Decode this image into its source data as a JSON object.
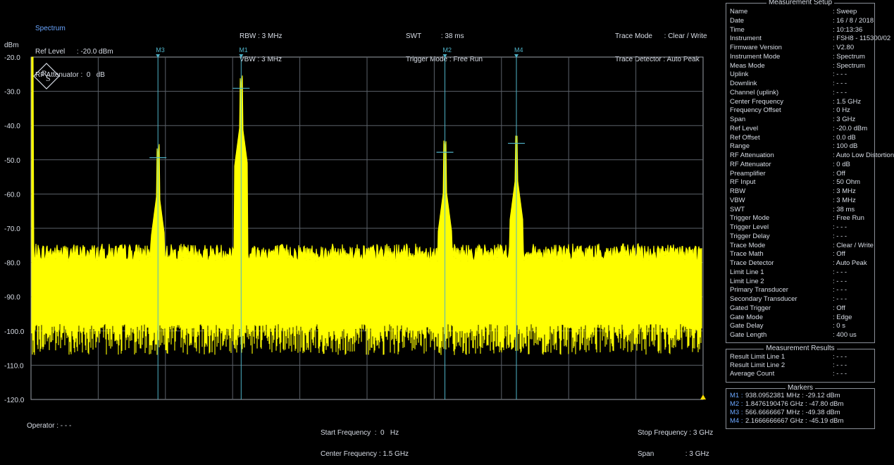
{
  "header": {
    "title": "Spectrum",
    "ref_level": "Ref Level      : -20.0 dBm",
    "rf_attenuator": "RF Attenuator :  0   dB",
    "rbw": "RBW : 3 MHz",
    "vbw": "VBW : 3 MHz",
    "swt": "SWT          : 38 ms",
    "trigger_mode": "Trigger Mode : Free Run",
    "trace_mode": "Trace Mode      : Clear / Write",
    "trace_detector": "Trace Detector : Auto Peak"
  },
  "y_unit": "dBm",
  "y_ticks": [
    "-20.0",
    "-30.0",
    "-40.0",
    "-50.0",
    "-60.0",
    "-70.0",
    "-80.0",
    "-90.0",
    "-100.0",
    "-110.0",
    "-120.0"
  ],
  "markers": [
    {
      "label": "M3",
      "freq_ghz": 0.5667,
      "level_dbm": -49.38
    },
    {
      "label": "M1",
      "freq_ghz": 0.9381,
      "level_dbm": -29.12
    },
    {
      "label": "M2",
      "freq_ghz": 1.8476,
      "level_dbm": -47.8
    },
    {
      "label": "M4",
      "freq_ghz": 2.1667,
      "level_dbm": -45.19
    }
  ],
  "trace_color": "#ffff00",
  "footer": {
    "operator": "Operator : - - -",
    "start_frequency": "Start Frequency  :  0   Hz",
    "center_frequency": "Center Frequency : 1.5 GHz",
    "stop_frequency": "Stop Frequency : 3 GHz",
    "span": "Span                : 3 GHz"
  },
  "measurement_setup": {
    "title": "Measurement Setup",
    "rows": [
      {
        "k": "Name",
        "v": ": Sweep"
      },
      {
        "k": "Date",
        "v": ": 16 / 8 / 2018"
      },
      {
        "k": "Time",
        "v": ": 10:13:36"
      },
      {
        "k": "Instrument",
        "v": ": FSH8 - 115300/02"
      },
      {
        "k": "Firmware Version",
        "v": ": V2.80"
      },
      {
        "k": "Instrument Mode",
        "v": ": Spectrum"
      },
      {
        "k": "Meas Mode",
        "v": ": Spectrum"
      },
      {
        "k": "Uplink",
        "v": ": - - -"
      },
      {
        "k": "Downlink",
        "v": ": - - -"
      },
      {
        "k": "Channel (uplink)",
        "v": ": - - -"
      },
      {
        "k": "Center Frequency",
        "v": ":   1.5  GHz"
      },
      {
        "k": "Frequency Offset",
        "v": ":   0    Hz"
      },
      {
        "k": "Span",
        "v": ":   3    GHz"
      },
      {
        "k": "Ref Level",
        "v": ": -20.0  dBm"
      },
      {
        "k": "Ref Offset",
        "v": ":   0.0  dB"
      },
      {
        "k": "Range",
        "v": ": 100    dB"
      },
      {
        "k": "RF Attenuation",
        "v": ": Auto Low Distortion"
      },
      {
        "k": "RF Attenuator",
        "v": ":   0    dB"
      },
      {
        "k": "Preamplifier",
        "v": ": Off"
      },
      {
        "k": "RF Input",
        "v": ": 50 Ohm"
      },
      {
        "k": "RBW",
        "v": ":   3    MHz"
      },
      {
        "k": "VBW",
        "v": ":   3    MHz"
      },
      {
        "k": "SWT",
        "v": ":  38    ms"
      },
      {
        "k": "Trigger Mode",
        "v": ": Free Run"
      },
      {
        "k": "Trigger Level",
        "v": ": - - -"
      },
      {
        "k": "Trigger Delay",
        "v": ": - - -"
      },
      {
        "k": "Trace Mode",
        "v": ": Clear / Write"
      },
      {
        "k": "Trace Math",
        "v": ": Off"
      },
      {
        "k": "Trace Detector",
        "v": ": Auto Peak"
      },
      {
        "k": "Limit Line 1",
        "v": ": - - -"
      },
      {
        "k": "Limit Line 2",
        "v": ": - - -"
      },
      {
        "k": "Primary Transducer",
        "v": ": - - -"
      },
      {
        "k": "Secondary Transducer",
        "v": ": - - -"
      },
      {
        "k": "Gated Trigger",
        "v": ": Off"
      },
      {
        "k": "Gate Mode",
        "v": ": Edge"
      },
      {
        "k": "Gate Delay",
        "v": ":   0    s"
      },
      {
        "k": "Gate Length",
        "v": ": 400    us"
      }
    ]
  },
  "measurement_results": {
    "title": "Measurement Results",
    "rows": [
      {
        "k": "Result Limit Line 1",
        "v": ": - - -"
      },
      {
        "k": "Result Limit Line 2",
        "v": ": - - -"
      },
      {
        "k": "Average Count",
        "v": ": - - -"
      }
    ]
  },
  "markers_table": {
    "title": "Markers",
    "rows": [
      {
        "m": "M1 :",
        "v": "938.0952381 MHz : -29.12 dBm"
      },
      {
        "m": "M2 :",
        "v": "1.8476190476 GHz : -47.80 dBm"
      },
      {
        "m": "M3 :",
        "v": "566.6666667 MHz : -49.38 dBm"
      },
      {
        "m": "M4 :",
        "v": "2.1666666667 GHz : -45.19 dBm"
      }
    ]
  }
}
